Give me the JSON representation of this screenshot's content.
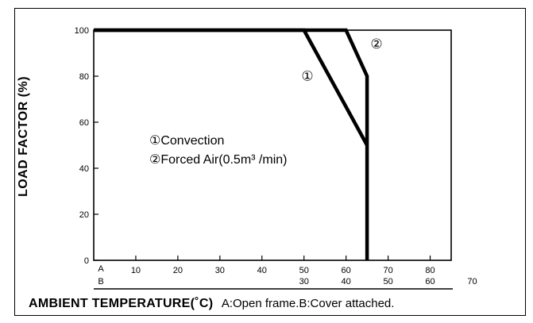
{
  "chart_data": {
    "type": "line",
    "title": "",
    "ylabel": "LOAD FACTOR (%)",
    "xlabel": "AMBIENT TEMPERATURE(˚C)",
    "xlabel_note": "A:Open frame.B:Cover attached.",
    "ylim": [
      0,
      100
    ],
    "xlim_A": [
      0,
      85
    ],
    "yticks": [
      "0",
      "20",
      "40",
      "60",
      "80",
      "100"
    ],
    "xaxis_A": {
      "name": "A",
      "ticks": [
        "10",
        "20",
        "30",
        "40",
        "50",
        "60",
        "70",
        "80"
      ]
    },
    "xaxis_B": {
      "name": "B",
      "ticks": [
        "30",
        "40",
        "50",
        "60",
        "70"
      ]
    },
    "grid": false,
    "series": [
      {
        "marker": "①",
        "x": [
          0,
          50,
          65
        ],
        "y": [
          100,
          100,
          50
        ]
      },
      {
        "marker": "②",
        "x": [
          0,
          60,
          65,
          65
        ],
        "y": [
          100,
          100,
          80,
          0
        ]
      }
    ],
    "legend": [
      {
        "marker": "①",
        "text": "Convection"
      },
      {
        "marker": "②",
        "text": "Forced Air(0.5m³ /min)"
      }
    ]
  }
}
